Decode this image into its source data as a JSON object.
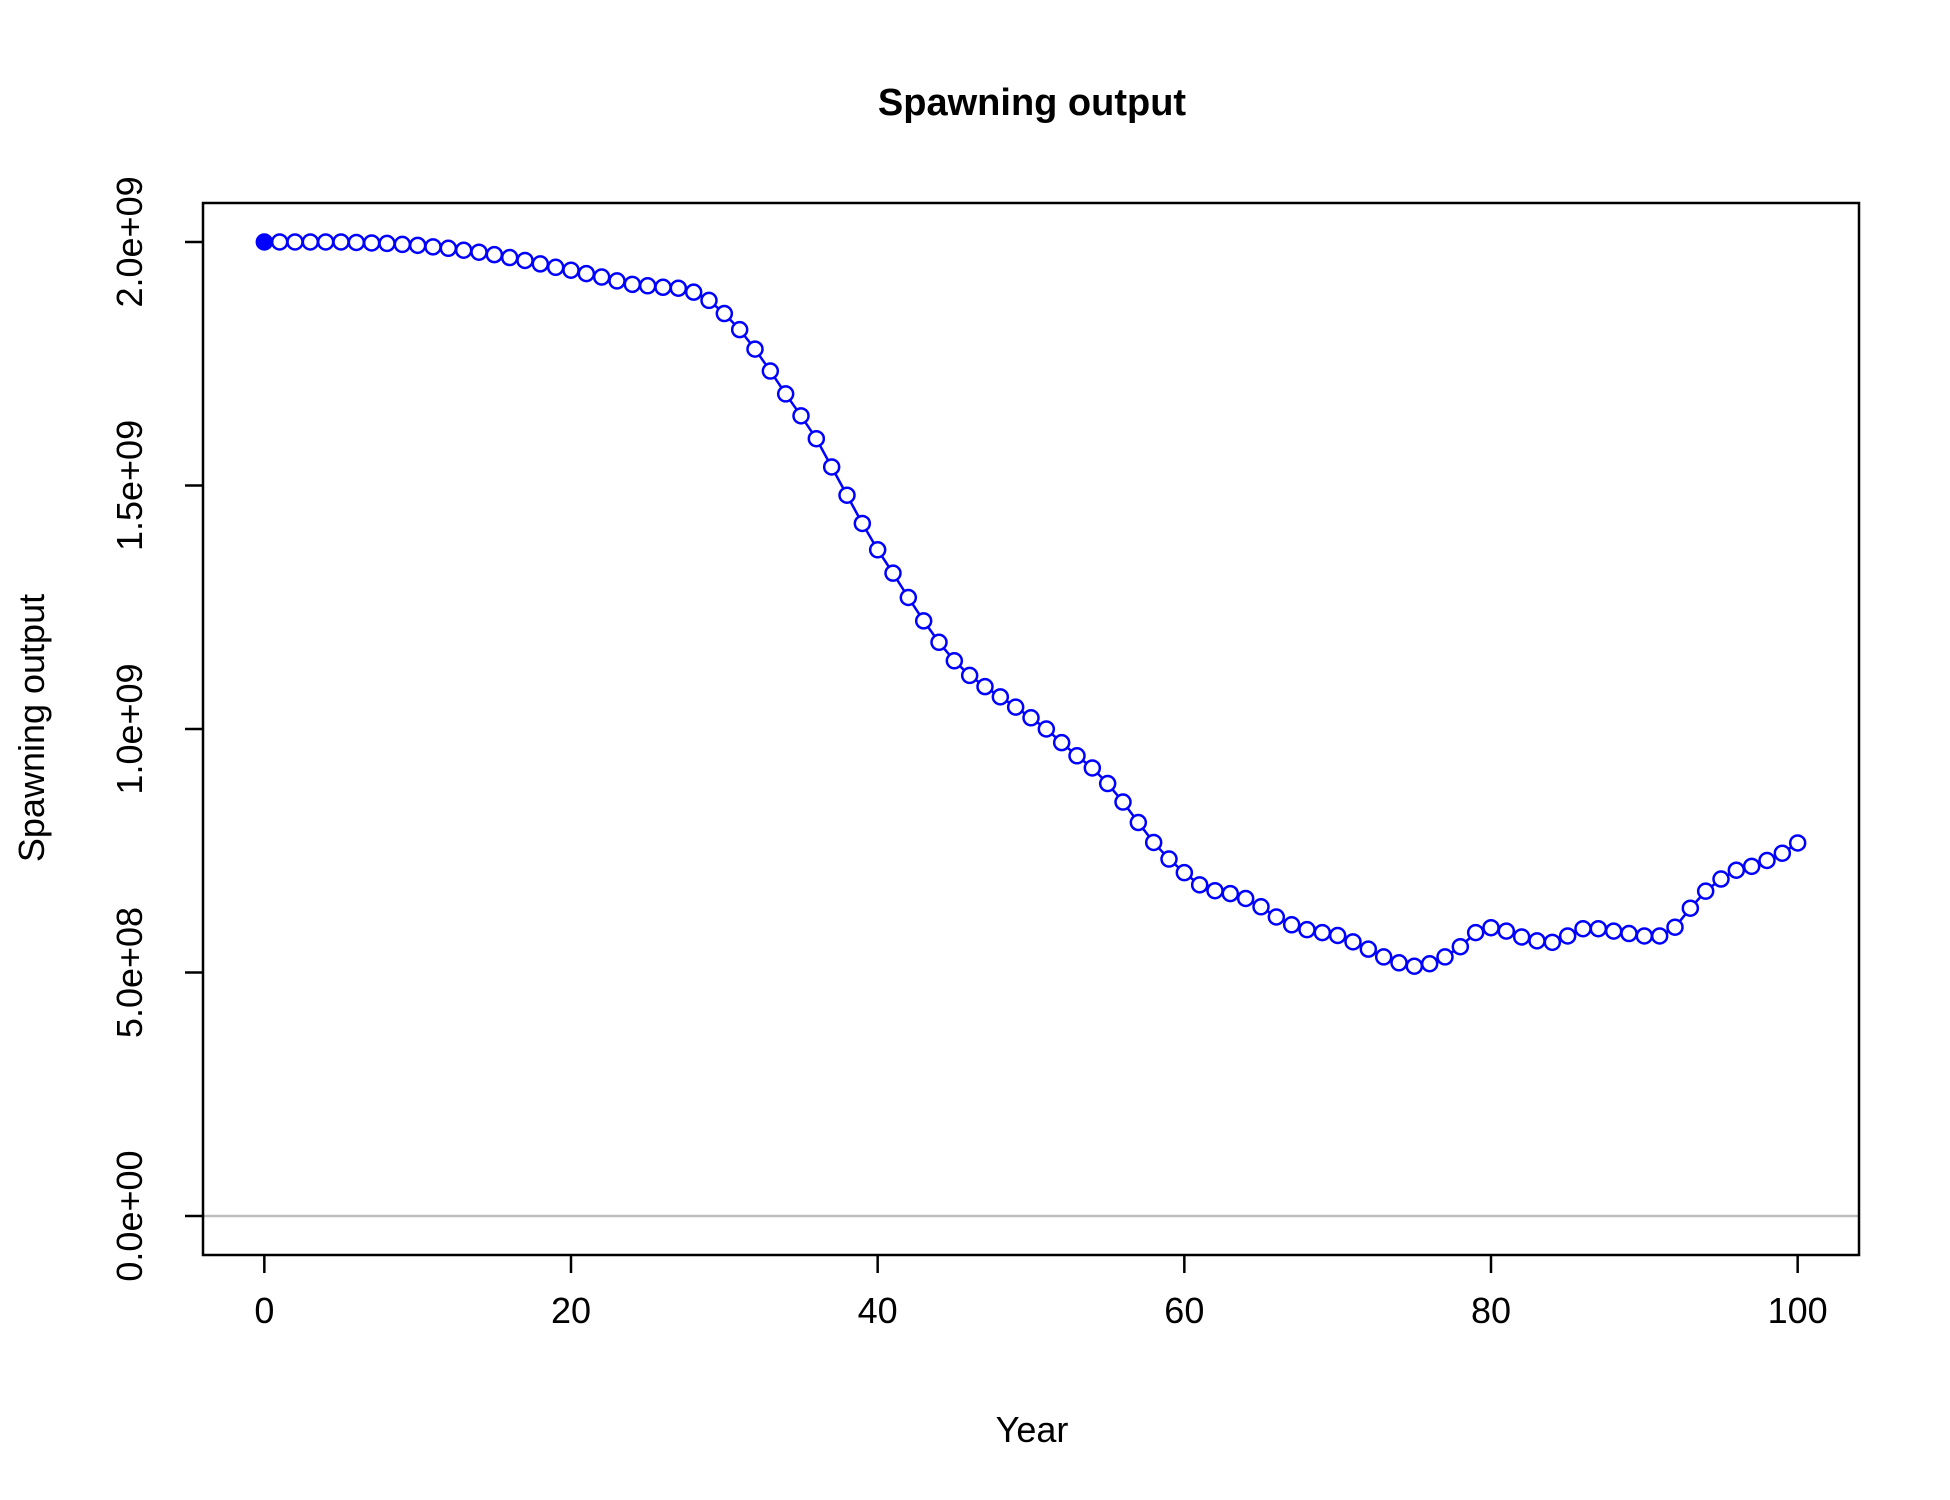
{
  "chart_data": {
    "type": "line",
    "title": "Spawning output",
    "xlabel": "Year",
    "ylabel": "Spawning output",
    "xlim": [
      -4,
      104
    ],
    "ylim": [
      -80000000.0,
      2080000000.0
    ],
    "xticks": [
      0,
      20,
      40,
      60,
      80,
      100
    ],
    "xtick_labels": [
      "0",
      "20",
      "40",
      "60",
      "80",
      "100"
    ],
    "yticks": [
      0,
      500000000,
      1000000000,
      1500000000,
      2000000000
    ],
    "ytick_labels": [
      "0.0e+00",
      "5.0e+08",
      "1.0e+09",
      "1.5e+09",
      "2.0e+09"
    ],
    "reference_line": {
      "y": 0,
      "color": "#bebebe"
    },
    "grid": false,
    "legend": "none",
    "series": [
      {
        "color": "#0000ff",
        "marker": "open-circle",
        "first_point_marker": "filled-circle",
        "x": [
          0,
          1,
          2,
          3,
          4,
          5,
          6,
          7,
          8,
          9,
          10,
          11,
          12,
          13,
          14,
          15,
          16,
          17,
          18,
          19,
          20,
          21,
          22,
          23,
          24,
          25,
          26,
          27,
          28,
          29,
          30,
          31,
          32,
          33,
          34,
          35,
          36,
          37,
          38,
          39,
          40,
          41,
          42,
          43,
          44,
          45,
          46,
          47,
          48,
          49,
          50,
          51,
          52,
          53,
          54,
          55,
          56,
          57,
          58,
          59,
          60,
          61,
          62,
          63,
          64,
          65,
          66,
          67,
          68,
          69,
          70,
          71,
          72,
          73,
          74,
          75,
          76,
          77,
          78,
          79,
          80,
          81,
          82,
          83,
          84,
          85,
          86,
          87,
          88,
          89,
          90,
          91,
          92,
          93,
          94,
          95,
          96,
          97,
          98,
          99,
          100
        ],
        "values": [
          2000000000.0,
          2000000000.0,
          2000000000.0,
          2000000000.0,
          2000000000.0,
          2000000000.0,
          1999000000.0,
          1998000000.0,
          1997000000.0,
          1995000000.0,
          1993000000.0,
          1990000000.0,
          1987000000.0,
          1983000000.0,
          1979000000.0,
          1974000000.0,
          1968000000.0,
          1962000000.0,
          1955000000.0,
          1948000000.0,
          1942000000.0,
          1935000000.0,
          1928000000.0,
          1920000000.0,
          1913000000.0,
          1910000000.0,
          1907000000.0,
          1905000000.0,
          1897000000.0,
          1880000000.0,
          1853000000.0,
          1820000000.0,
          1780000000.0,
          1735000000.0,
          1688000000.0,
          1643000000.0,
          1596000000.0,
          1538000000.0,
          1480000000.0,
          1422000000.0,
          1368000000.0,
          1320000000.0,
          1270000000.0,
          1222000000.0,
          1178000000.0,
          1140000000.0,
          1110000000.0,
          1087000000.0,
          1066000000.0,
          1045000000.0,
          1023000000.0,
          1000000000.0,
          972000000.0,
          945000000.0,
          920000000.0,
          888000000.0,
          850000000.0,
          808000000.0,
          767000000.0,
          733000000.0,
          705000000.0,
          680000000.0,
          668000000.0,
          662000000.0,
          652000000.0,
          635000000.0,
          614000000.0,
          598000000.0,
          588000000.0,
          582000000.0,
          576000000.0,
          563000000.0,
          548000000.0,
          532000000.0,
          520000000.0,
          513000000.0,
          518000000.0,
          532000000.0,
          553000000.0,
          582000000.0,
          592000000.0,
          585000000.0,
          573000000.0,
          565000000.0,
          562000000.0,
          575000000.0,
          590000000.0,
          590000000.0,
          585000000.0,
          580000000.0,
          575000000.0,
          575000000.0,
          593000000.0,
          632000000.0,
          667000000.0,
          692000000.0,
          710000000.0,
          718000000.0,
          730000000.0,
          745000000.0,
          766000000.0
        ]
      }
    ]
  }
}
